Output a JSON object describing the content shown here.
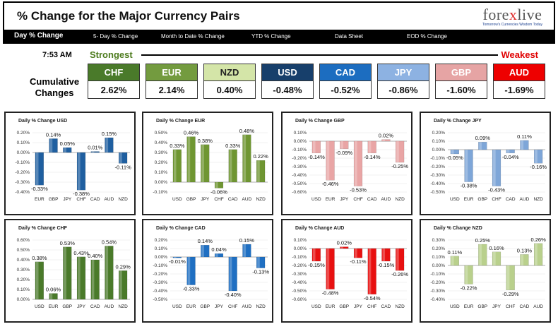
{
  "header": {
    "title": "% Change for the Major Currency Pairs",
    "logo_main_left": "fore",
    "logo_main_x": "x",
    "logo_main_right": "live",
    "logo_tag": "Tomorrow's Currencies Wisdom Today"
  },
  "nav": {
    "items": [
      "Day % Change",
      "5- Day % Change",
      "Month to Date % Change",
      "YTD % Change",
      "Data Sheet",
      "EOD % Change"
    ]
  },
  "summary": {
    "time": "7:53 AM",
    "strongest": "Strongest",
    "weakest": "Weakest",
    "label_line1": "Cumulative",
    "label_line2": "Changes",
    "currencies": [
      {
        "code": "CHF",
        "value": "2.62%",
        "color": "#4a7a2a"
      },
      {
        "code": "EUR",
        "value": "2.14%",
        "color": "#739b3f"
      },
      {
        "code": "NZD",
        "value": "0.40%",
        "color": "#d4e5a8"
      },
      {
        "code": "USD",
        "value": "-0.48%",
        "color": "#173f6b"
      },
      {
        "code": "CAD",
        "value": "-0.52%",
        "color": "#1c6dc0"
      },
      {
        "code": "JPY",
        "value": "-0.86%",
        "color": "#8db2e2"
      },
      {
        "code": "GBP",
        "value": "-1.60%",
        "color": "#e6a4a4"
      },
      {
        "code": "AUD",
        "value": "-1.69%",
        "color": "#ee0000"
      }
    ]
  },
  "chart_data": [
    {
      "type": "bar",
      "title": "Daily % Change USD",
      "categories": [
        "EUR",
        "GBP",
        "JPY",
        "CHF",
        "CAD",
        "AUD",
        "NZD"
      ],
      "values": [
        -0.33,
        0.14,
        0.05,
        -0.38,
        0.01,
        0.15,
        -0.11
      ],
      "labels": [
        "-0.33%",
        "0.14%",
        "0.05%",
        "-0.38%",
        "0.01%",
        "0.15%",
        "-0.11%"
      ],
      "yticks": [
        -0.4,
        -0.3,
        -0.2,
        -0.1,
        0,
        0.1,
        0.2
      ],
      "tick_labels": [
        "-0.40%",
        "-0.30%",
        "-0.20%",
        "-0.10%",
        "0.00%",
        "0.10%",
        "0.20%"
      ],
      "color": "#1f5fa0"
    },
    {
      "type": "bar",
      "title": "Daily % Change EUR",
      "categories": [
        "USD",
        "GBP",
        "JPY",
        "CHF",
        "CAD",
        "AUD",
        "NZD"
      ],
      "values": [
        0.33,
        0.46,
        0.38,
        -0.06,
        0.33,
        0.48,
        0.22
      ],
      "labels": [
        "0.33%",
        "0.46%",
        "0.38%",
        "-0.06%",
        "0.33%",
        "0.48%",
        "0.22%"
      ],
      "yticks": [
        -0.1,
        0,
        0.1,
        0.2,
        0.3,
        0.4,
        0.5
      ],
      "tick_labels": [
        "-0.10%",
        "0.00%",
        "0.10%",
        "0.20%",
        "0.30%",
        "0.40%",
        "0.50%"
      ],
      "color": "#6f9632"
    },
    {
      "type": "bar",
      "title": "Daily % Change GBP",
      "categories": [
        "USD",
        "EUR",
        "JPY",
        "CHF",
        "CAD",
        "AUD",
        "NZD"
      ],
      "values": [
        -0.14,
        -0.46,
        -0.09,
        -0.53,
        -0.14,
        0.02,
        -0.25
      ],
      "labels": [
        "-0.14%",
        "-0.46%",
        "-0.09%",
        "-0.53%",
        "-0.14%",
        "0.02%",
        "-0.25%"
      ],
      "yticks": [
        -0.6,
        -0.5,
        -0.4,
        -0.3,
        -0.2,
        -0.1,
        0,
        0.1
      ],
      "tick_labels": [
        "-0.60%",
        "-0.50%",
        "-0.40%",
        "-0.30%",
        "-0.20%",
        "-0.10%",
        "0.00%",
        "0.10%"
      ],
      "color": "#e9a5a5"
    },
    {
      "type": "bar",
      "title": "Daily % Change JPY",
      "categories": [
        "USD",
        "EUR",
        "GBP",
        "CHF",
        "CAD",
        "AUD",
        "NZD"
      ],
      "values": [
        -0.05,
        -0.38,
        0.09,
        -0.43,
        -0.04,
        0.11,
        -0.16
      ],
      "labels": [
        "-0.05%",
        "-0.38%",
        "0.09%",
        "-0.43%",
        "-0.04%",
        "0.11%",
        "-0.16%"
      ],
      "yticks": [
        -0.5,
        -0.4,
        -0.3,
        -0.2,
        -0.1,
        0,
        0.1,
        0.2
      ],
      "tick_labels": [
        "-0.50%",
        "-0.40%",
        "-0.30%",
        "-0.20%",
        "-0.10%",
        "0.00%",
        "0.10%",
        "0.20%"
      ],
      "color": "#7ea6d8"
    },
    {
      "type": "bar",
      "title": "Daily % Change CHF",
      "categories": [
        "USD",
        "EUR",
        "GBP",
        "JPY",
        "CAD",
        "AUD",
        "NZD"
      ],
      "values": [
        0.38,
        0.06,
        0.53,
        0.43,
        0.4,
        0.54,
        0.29
      ],
      "labels": [
        "0.38%",
        "0.06%",
        "0.53%",
        "0.43%",
        "0.40%",
        "0.54%",
        "0.29%"
      ],
      "yticks": [
        0,
        0.1,
        0.2,
        0.3,
        0.4,
        0.5,
        0.6
      ],
      "tick_labels": [
        "0.00%",
        "0.10%",
        "0.20%",
        "0.30%",
        "0.40%",
        "0.50%",
        "0.60%"
      ],
      "color": "#4a7a2a"
    },
    {
      "type": "bar",
      "title": "Daily % Change CAD",
      "categories": [
        "USD",
        "EUR",
        "GBP",
        "JPY",
        "CHF",
        "AUD",
        "NZD"
      ],
      "values": [
        -0.01,
        -0.33,
        0.14,
        0.04,
        -0.4,
        0.15,
        -0.13
      ],
      "labels": [
        "-0.01%",
        "-0.33%",
        "0.14%",
        "0.04%",
        "-0.40%",
        "0.15%",
        "-0.13%"
      ],
      "yticks": [
        -0.5,
        -0.4,
        -0.3,
        -0.2,
        -0.1,
        0,
        0.1,
        0.2
      ],
      "tick_labels": [
        "-0.50%",
        "-0.40%",
        "-0.30%",
        "-0.20%",
        "-0.10%",
        "0.00%",
        "0.10%",
        "0.20%"
      ],
      "color": "#1f6fc2"
    },
    {
      "type": "bar",
      "title": "Daily % Change AUD",
      "categories": [
        "USD",
        "EUR",
        "GBP",
        "JPY",
        "CHF",
        "CAD",
        "NZD"
      ],
      "values": [
        -0.15,
        -0.48,
        0.02,
        -0.11,
        -0.54,
        -0.15,
        -0.26
      ],
      "labels": [
        "-0.15%",
        "-0.48%",
        "0.02%",
        "-0.11%",
        "-0.54%",
        "-0.15%",
        "-0.26%"
      ],
      "yticks": [
        -0.6,
        -0.5,
        -0.4,
        -0.3,
        -0.2,
        -0.1,
        0,
        0.1
      ],
      "tick_labels": [
        "-0.60%",
        "-0.50%",
        "-0.40%",
        "-0.30%",
        "-0.20%",
        "-0.10%",
        "0.00%",
        "0.10%"
      ],
      "color": "#e81010"
    },
    {
      "type": "bar",
      "title": "Daily % Change NZD",
      "categories": [
        "USD",
        "EUR",
        "GBP",
        "JPY",
        "CHF",
        "CAD",
        "AUD"
      ],
      "values": [
        0.11,
        -0.22,
        0.25,
        0.16,
        -0.29,
        0.13,
        0.26
      ],
      "labels": [
        "0.11%",
        "-0.22%",
        "0.25%",
        "0.16%",
        "-0.29%",
        "0.13%",
        "0.26%"
      ],
      "yticks": [
        -0.4,
        -0.3,
        -0.2,
        -0.1,
        0,
        0.1,
        0.2,
        0.3
      ],
      "tick_labels": [
        "-0.40%",
        "-0.30%",
        "-0.20%",
        "-0.10%",
        "0.00%",
        "0.10%",
        "0.20%",
        "0.30%"
      ],
      "color": "#b9d08c"
    }
  ]
}
